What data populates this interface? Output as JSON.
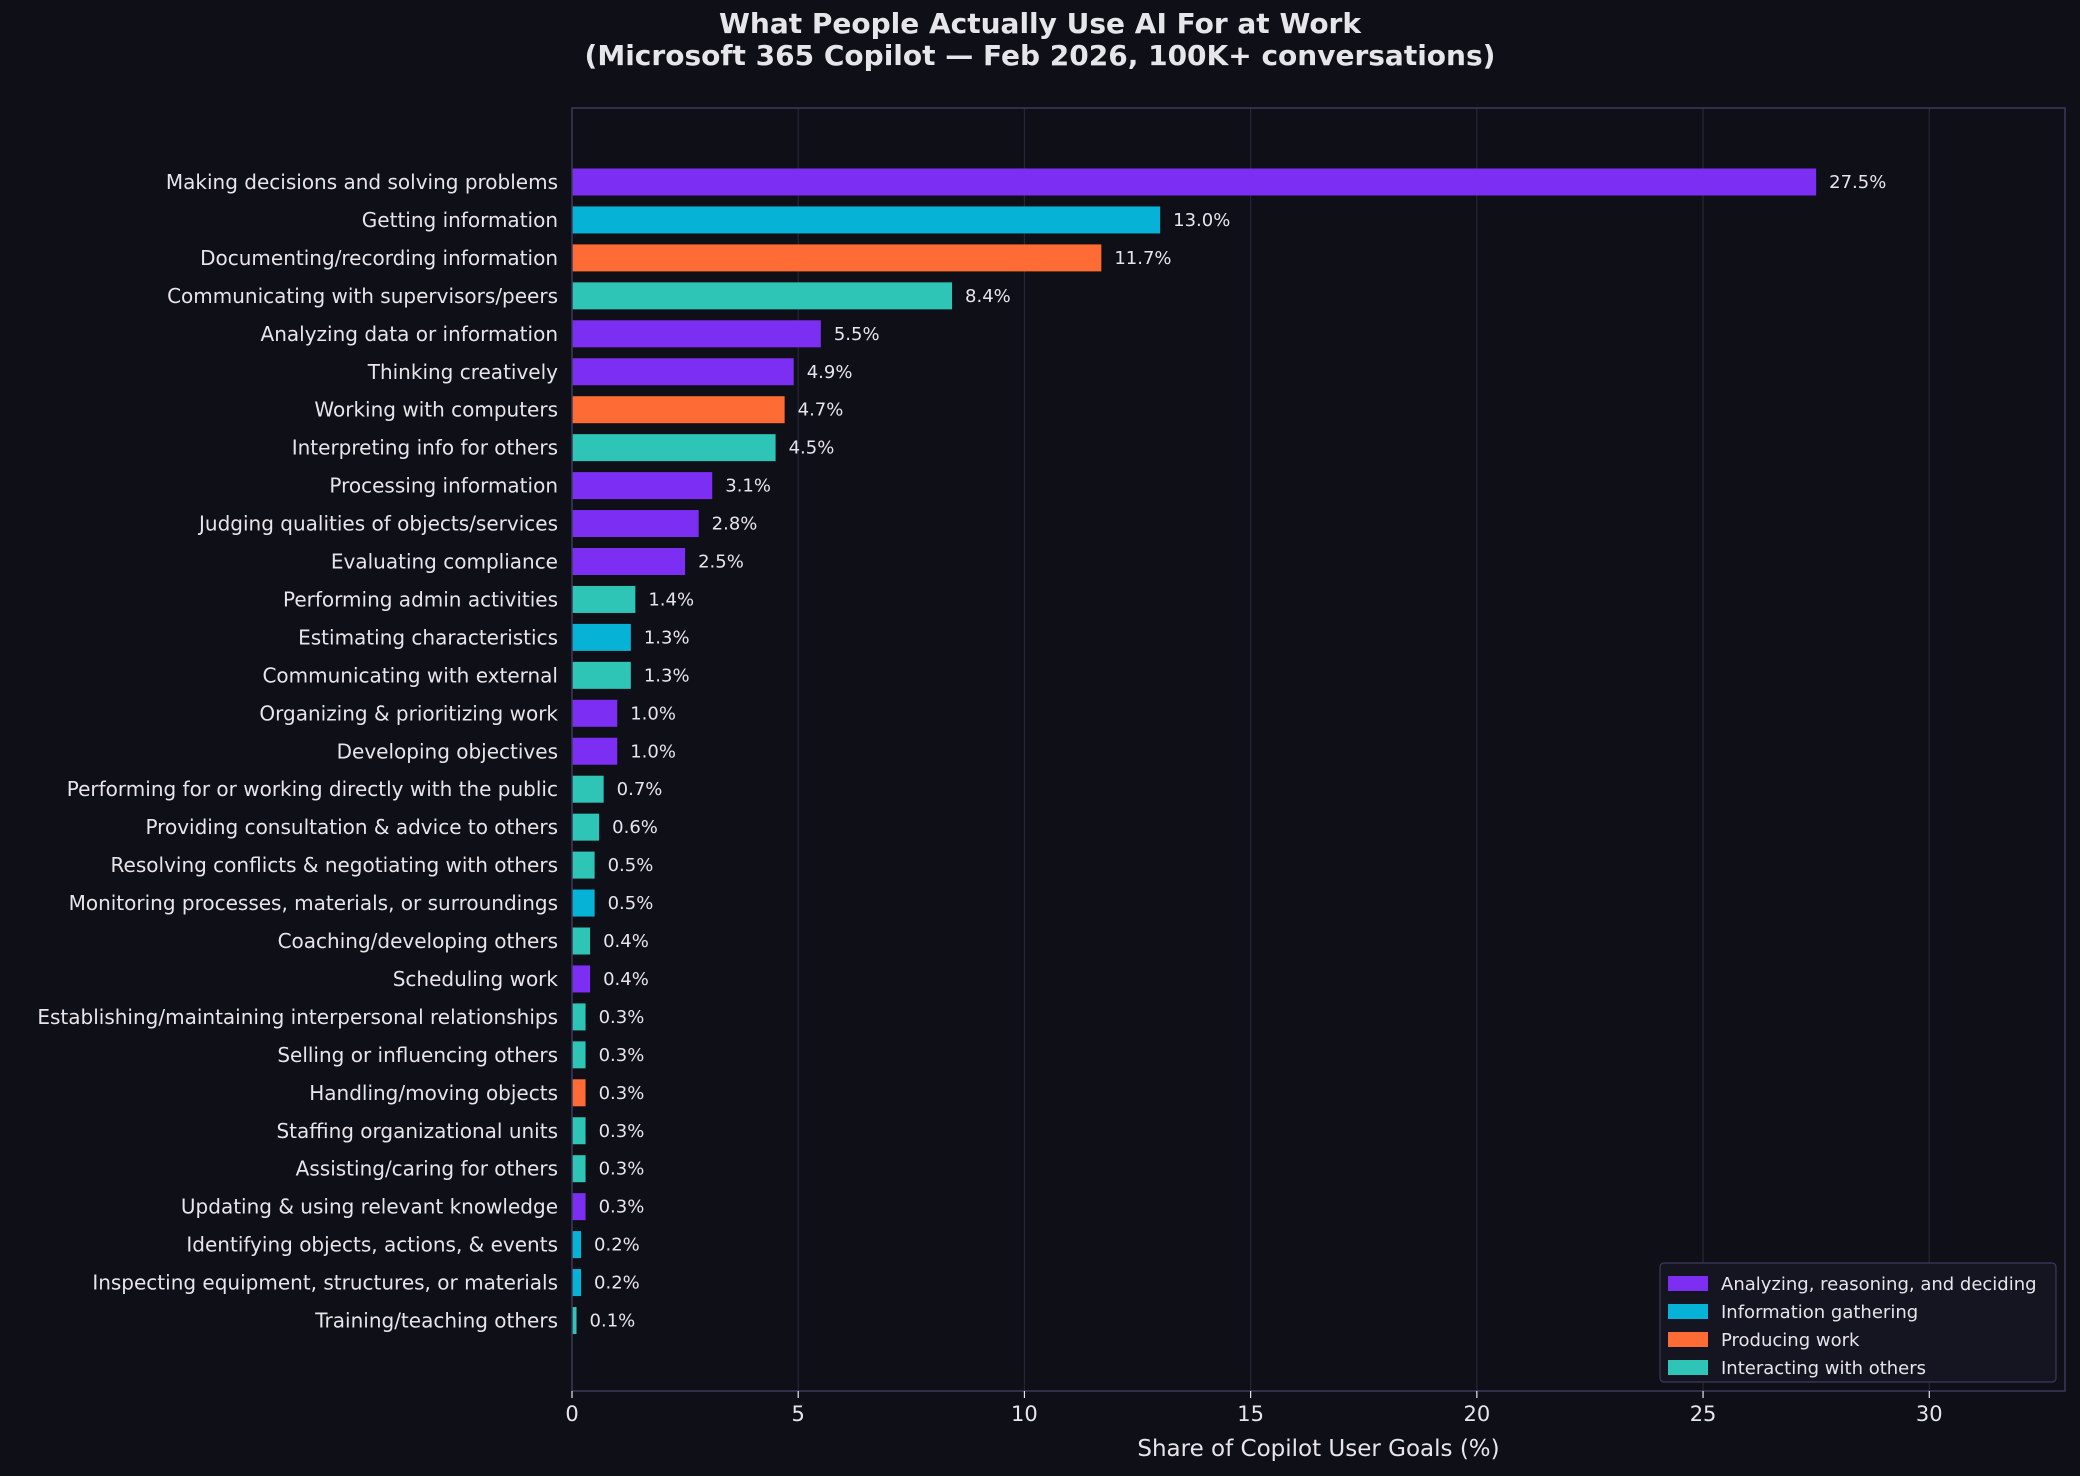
{
  "chart_data": {
    "type": "bar",
    "orientation": "horizontal",
    "title": "What People Actually Use AI For at Work",
    "subtitle": "(Microsoft 365 Copilot — Feb 2026, 100K+ conversations)",
    "xlabel": "Share of Copilot User Goals (%)",
    "ylabel": "",
    "xlim": [
      0,
      33
    ],
    "xticks": [
      0,
      5,
      10,
      15,
      20,
      25,
      30
    ],
    "grid": "vertical",
    "legend_position": "bottom-right",
    "value_suffix": "%",
    "groups": [
      {
        "name": "Analyzing, reasoning, and deciding",
        "color": "#7c2ff2"
      },
      {
        "name": "Information gathering",
        "color": "#06b2d6"
      },
      {
        "name": "Producing work",
        "color": "#ff6b35"
      },
      {
        "name": "Interacting with others",
        "color": "#2ec4b6"
      }
    ],
    "bars": [
      {
        "label": "Making decisions and solving problems",
        "value": 27.5,
        "group": 0
      },
      {
        "label": "Getting information",
        "value": 13.0,
        "group": 1
      },
      {
        "label": "Documenting/recording information",
        "value": 11.7,
        "group": 2
      },
      {
        "label": "Communicating with supervisors/peers",
        "value": 8.4,
        "group": 3
      },
      {
        "label": "Analyzing data or information",
        "value": 5.5,
        "group": 0
      },
      {
        "label": "Thinking creatively",
        "value": 4.9,
        "group": 0
      },
      {
        "label": "Working with computers",
        "value": 4.7,
        "group": 2
      },
      {
        "label": "Interpreting info for others",
        "value": 4.5,
        "group": 3
      },
      {
        "label": "Processing information",
        "value": 3.1,
        "group": 0
      },
      {
        "label": "Judging qualities of objects/services",
        "value": 2.8,
        "group": 0
      },
      {
        "label": "Evaluating compliance",
        "value": 2.5,
        "group": 0
      },
      {
        "label": "Performing admin activities",
        "value": 1.4,
        "group": 3
      },
      {
        "label": "Estimating characteristics",
        "value": 1.3,
        "group": 1
      },
      {
        "label": "Communicating with external",
        "value": 1.3,
        "group": 3
      },
      {
        "label": "Organizing & prioritizing work",
        "value": 1.0,
        "group": 0
      },
      {
        "label": "Developing objectives",
        "value": 1.0,
        "group": 0
      },
      {
        "label": "Performing for or working directly with the public",
        "value": 0.7,
        "group": 3
      },
      {
        "label": "Providing consultation & advice to others",
        "value": 0.6,
        "group": 3
      },
      {
        "label": "Resolving conflicts & negotiating with others",
        "value": 0.5,
        "group": 3
      },
      {
        "label": "Monitoring processes, materials, or surroundings",
        "value": 0.5,
        "group": 1
      },
      {
        "label": "Coaching/developing others",
        "value": 0.4,
        "group": 3
      },
      {
        "label": "Scheduling work",
        "value": 0.4,
        "group": 0
      },
      {
        "label": "Establishing/maintaining interpersonal relationships",
        "value": 0.3,
        "group": 3
      },
      {
        "label": "Selling or influencing others",
        "value": 0.3,
        "group": 3
      },
      {
        "label": "Handling/moving objects",
        "value": 0.3,
        "group": 2
      },
      {
        "label": "Staffing organizational units",
        "value": 0.3,
        "group": 3
      },
      {
        "label": "Assisting/caring for others",
        "value": 0.3,
        "group": 3
      },
      {
        "label": "Updating & using relevant knowledge",
        "value": 0.3,
        "group": 0
      },
      {
        "label": "Identifying objects, actions, & events",
        "value": 0.2,
        "group": 1
      },
      {
        "label": "Inspecting equipment, structures, or materials",
        "value": 0.2,
        "group": 1
      },
      {
        "label": "Training/teaching others",
        "value": 0.1,
        "group": 3
      }
    ]
  },
  "colors": {
    "background": "#0f0f17",
    "plot_border": "#3a3a5c",
    "grid": "#26263a",
    "text": "#e5e5ea"
  }
}
